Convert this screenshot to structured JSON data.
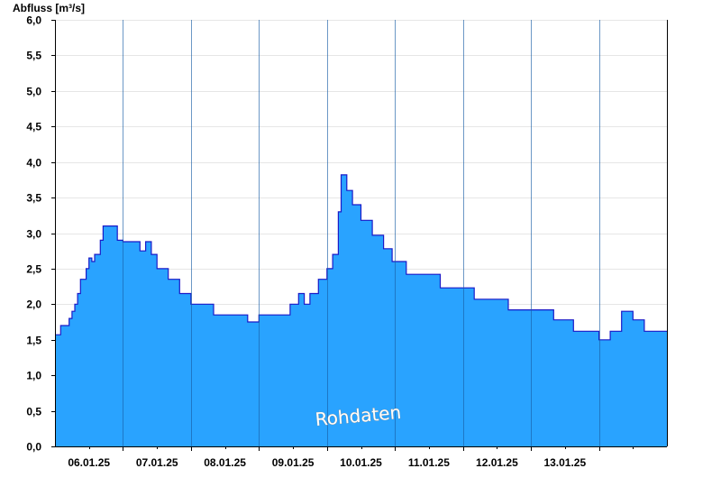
{
  "chart_data": {
    "type": "area",
    "ylabel": "Abfluss [m³/s]",
    "watermark": "Rohdaten",
    "ylim": [
      0,
      6.0
    ],
    "xlim": [
      "2025-01-05T00:00",
      "2025-01-14T00:00"
    ],
    "y_ticks": [
      "0,0",
      "0,5",
      "1,0",
      "1,5",
      "2,0",
      "2,5",
      "3,0",
      "3,5",
      "4,0",
      "4,5",
      "5,0",
      "5,5",
      "6,0"
    ],
    "x_tick_labels": [
      "06.01.25",
      "07.01.25",
      "08.01.25",
      "09.01.25",
      "10.01.25",
      "11.01.25",
      "12.01.25",
      "13.01.25"
    ],
    "grid": true,
    "colors": {
      "fill": "#29a3ff",
      "line": "#1a1ac8",
      "grid": "#e6e6e6",
      "axis": "#000000"
    },
    "series": [
      {
        "x": [
          "2025-01-05T00:00",
          "2025-01-05T02:00",
          "2025-01-05T03:00",
          "2025-01-05T05:00",
          "2025-01-05T06:00",
          "2025-01-05T07:00",
          "2025-01-05T08:00",
          "2025-01-05T09:00",
          "2025-01-05T10:00",
          "2025-01-05T11:00",
          "2025-01-05T12:00",
          "2025-01-05T13:00",
          "2025-01-05T14:00",
          "2025-01-05T15:00",
          "2025-01-05T16:00",
          "2025-01-05T17:00",
          "2025-01-05T18:00",
          "2025-01-05T19:00",
          "2025-01-05T21:00",
          "2025-01-05T22:00",
          "2025-01-06T00:00",
          "2025-01-06T02:00",
          "2025-01-06T04:00",
          "2025-01-06T06:00",
          "2025-01-06T08:00",
          "2025-01-06T10:00",
          "2025-01-06T12:00",
          "2025-01-06T14:00",
          "2025-01-06T16:00",
          "2025-01-06T17:00",
          "2025-01-06T20:00",
          "2025-01-07T00:00",
          "2025-01-07T04:00",
          "2025-01-07T08:00",
          "2025-01-07T12:00",
          "2025-01-07T16:00",
          "2025-01-07T20:00",
          "2025-01-08T00:00",
          "2025-01-08T04:00",
          "2025-01-08T08:00",
          "2025-01-08T11:00",
          "2025-01-08T12:00",
          "2025-01-08T14:00",
          "2025-01-08T16:00",
          "2025-01-08T18:00",
          "2025-01-08T21:00",
          "2025-01-09T00:00",
          "2025-01-09T02:00",
          "2025-01-09T04:00",
          "2025-01-09T05:00",
          "2025-01-09T06:00",
          "2025-01-09T07:00",
          "2025-01-09T08:00",
          "2025-01-09T09:00",
          "2025-01-09T10:00",
          "2025-01-09T11:00",
          "2025-01-09T12:00",
          "2025-01-09T14:00",
          "2025-01-09T16:00",
          "2025-01-09T18:00",
          "2025-01-09T20:00",
          "2025-01-09T21:00",
          "2025-01-09T23:00",
          "2025-01-10T00:00",
          "2025-01-10T02:00",
          "2025-01-10T04:00",
          "2025-01-10T08:00",
          "2025-01-10T12:00",
          "2025-01-10T16:00",
          "2025-01-10T20:00",
          "2025-01-11T00:00",
          "2025-01-11T04:00",
          "2025-01-11T08:00",
          "2025-01-11T12:00",
          "2025-01-11T16:00",
          "2025-01-11T20:00",
          "2025-01-12T00:00",
          "2025-01-12T04:00",
          "2025-01-12T08:00",
          "2025-01-12T12:00",
          "2025-01-12T14:00",
          "2025-01-12T15:00",
          "2025-01-12T16:00",
          "2025-01-12T20:00",
          "2025-01-13T00:00",
          "2025-01-13T04:00",
          "2025-01-13T08:00",
          "2025-01-13T12:00",
          "2025-01-13T16:00",
          "2025-01-13T18:00",
          "2025-01-13T19:00",
          "2025-01-13T20:00",
          "2025-01-13T22:00",
          "2025-01-14T00:00"
        ],
        "values": [
          1.57,
          1.7,
          1.7,
          1.8,
          1.9,
          2.0,
          2.15,
          2.35,
          2.35,
          2.5,
          2.65,
          2.6,
          2.7,
          2.7,
          2.9,
          3.1,
          3.1,
          3.1,
          3.1,
          2.9,
          2.88,
          2.88,
          2.88,
          2.75,
          2.88,
          2.7,
          2.5,
          2.5,
          2.35,
          2.35,
          2.15,
          2.0,
          2.0,
          1.85,
          1.85,
          1.85,
          1.75,
          1.85,
          1.85,
          1.85,
          2.0,
          2.0,
          2.15,
          2.0,
          2.15,
          2.35,
          2.5,
          2.7,
          3.3,
          3.82,
          3.82,
          3.6,
          3.6,
          3.4,
          3.4,
          3.4,
          3.18,
          3.18,
          2.97,
          2.97,
          2.78,
          2.78,
          2.6,
          2.6,
          2.6,
          2.42,
          2.42,
          2.42,
          2.23,
          2.23,
          2.23,
          2.07,
          2.07,
          2.07,
          1.92,
          1.92,
          1.92,
          1.92,
          1.78,
          1.78,
          1.78,
          1.62,
          1.62,
          1.62,
          1.5,
          1.62,
          1.9,
          1.78,
          1.62,
          1.62,
          1.62,
          1.62,
          1.62,
          1.62
        ]
      }
    ]
  }
}
